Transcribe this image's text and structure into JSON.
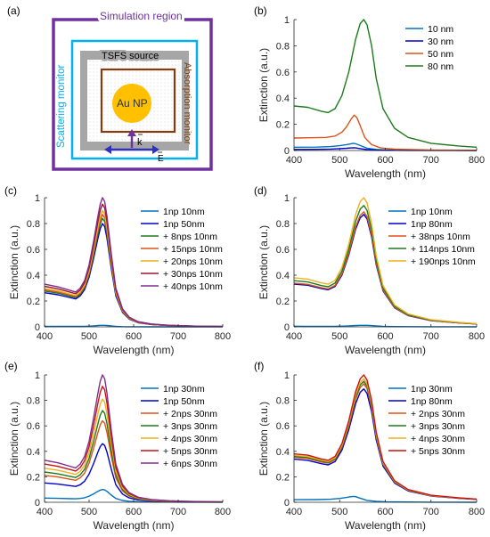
{
  "schematic": {
    "panel_label": "(a)",
    "simulation_region_label": "Simulation region",
    "source_label": "TSFS source",
    "scattering_monitor_label": "Scattering monitor",
    "absorption_monitor_label": "Absorption monitor",
    "particle_label": "Au NP",
    "k_label": "k",
    "e_label": "E",
    "colors": {
      "simulation_region": "#7030a0",
      "scattering_monitor": "#00b0f0",
      "source": "#a6a6a6",
      "absorption_monitor": "#843c0c",
      "particle": "#ffc000",
      "k_arrow": "#7030a0",
      "e_arrow": "#3030c0"
    }
  },
  "chart_data": [
    {
      "panel_label": "(b)",
      "type": "line",
      "xlabel": "Wavelength (nm)",
      "ylabel": "Extinction (a.u.)",
      "xlim": [
        400,
        800
      ],
      "ylim": [
        0,
        1
      ],
      "xticks": [
        400,
        500,
        600,
        700,
        800
      ],
      "yticks": [
        0,
        0.2,
        0.4,
        0.6,
        0.8,
        1
      ],
      "xtick_labels": [
        "400",
        "500",
        "600",
        "700",
        "800"
      ],
      "ytick_labels": [
        "0",
        "0.2",
        "0.4",
        "0.6",
        "0.8",
        "1"
      ],
      "legend_position": "top-right",
      "series": [
        {
          "name": "10 nm",
          "color": "#0072bd",
          "x": [
            400,
            450,
            480,
            500,
            515,
            525,
            530,
            535,
            545,
            560,
            580,
            600,
            650,
            700,
            800
          ],
          "y": [
            0.025,
            0.026,
            0.03,
            0.037,
            0.045,
            0.052,
            0.055,
            0.052,
            0.038,
            0.018,
            0.008,
            0.005,
            0.003,
            0.002,
            0.001
          ]
        },
        {
          "name": "30 nm",
          "color": "#0000cc",
          "x": [
            400,
            450,
            480,
            500,
            515,
            525,
            530,
            535,
            545,
            560,
            580,
            600,
            650,
            700,
            800
          ],
          "y": [
            0.008,
            0.009,
            0.011,
            0.014,
            0.017,
            0.02,
            0.021,
            0.02,
            0.014,
            0.007,
            0.003,
            0.002,
            0.001,
            0.001,
            0.0
          ]
        },
        {
          "name": "50 nm",
          "color": "#d95319",
          "x": [
            400,
            450,
            470,
            490,
            505,
            515,
            525,
            532,
            538,
            545,
            555,
            570,
            590,
            620,
            700,
            800
          ],
          "y": [
            0.095,
            0.098,
            0.1,
            0.11,
            0.14,
            0.18,
            0.24,
            0.27,
            0.25,
            0.19,
            0.1,
            0.045,
            0.02,
            0.01,
            0.004,
            0.002
          ]
        },
        {
          "name": "80 nm",
          "color": "#1e7a1e",
          "x": [
            400,
            430,
            460,
            475,
            490,
            505,
            520,
            535,
            545,
            553,
            560,
            570,
            580,
            595,
            620,
            650,
            700,
            760,
            800
          ],
          "y": [
            0.34,
            0.33,
            0.3,
            0.29,
            0.32,
            0.42,
            0.6,
            0.85,
            0.97,
            1.0,
            0.96,
            0.8,
            0.55,
            0.32,
            0.17,
            0.1,
            0.055,
            0.035,
            0.025
          ]
        }
      ]
    },
    {
      "panel_label": "(c)",
      "type": "line",
      "xlabel": "Wavelength (nm)",
      "ylabel": "Extinction (a.u.)",
      "xlim": [
        400,
        800
      ],
      "ylim": [
        0,
        1
      ],
      "xticks": [
        400,
        500,
        600,
        700,
        800
      ],
      "yticks": [
        0,
        0.2,
        0.4,
        0.6,
        0.8,
        1
      ],
      "xtick_labels": [
        "400",
        "500",
        "600",
        "700",
        "800"
      ],
      "ytick_labels": [
        "0",
        "0.2",
        "0.4",
        "0.6",
        "0.8",
        "1"
      ],
      "legend_position": "top-right",
      "shape_x": [
        400,
        430,
        460,
        470,
        480,
        490,
        500,
        510,
        520,
        525,
        530,
        535,
        540,
        550,
        560,
        575,
        590,
        610,
        640,
        680,
        720,
        760,
        800
      ],
      "shape_rel": [
        0.33,
        0.31,
        0.28,
        0.27,
        0.3,
        0.36,
        0.48,
        0.66,
        0.86,
        0.95,
        1.0,
        0.97,
        0.86,
        0.56,
        0.3,
        0.14,
        0.075,
        0.04,
        0.022,
        0.012,
        0.007,
        0.004,
        0.003
      ],
      "series": [
        {
          "name": "1np 10nm",
          "color": "#0072bd",
          "peak": 0.012
        },
        {
          "name": "1np 50nm",
          "color": "#0000cc",
          "peak": 0.8
        },
        {
          "name": "+ 8nps 10nm",
          "color": "#1e7a1e",
          "peak": 0.84
        },
        {
          "name": "+ 15nps 10nm",
          "color": "#d95319",
          "peak": 0.87
        },
        {
          "name": "+ 20nps 10nm",
          "color": "#edb120",
          "peak": 0.9
        },
        {
          "name": "+ 30nps 10nm",
          "color": "#a2142f",
          "peak": 0.95
        },
        {
          "name": "+ 40nps 10nm",
          "color": "#7e2f8e",
          "peak": 1.0
        }
      ]
    },
    {
      "panel_label": "(d)",
      "type": "line",
      "xlabel": "Wavelength (nm)",
      "ylabel": "Extinction (a.u.)",
      "xlim": [
        400,
        800
      ],
      "ylim": [
        0,
        1
      ],
      "xticks": [
        400,
        500,
        600,
        700,
        800
      ],
      "yticks": [
        0,
        0.2,
        0.4,
        0.6,
        0.8,
        1
      ],
      "xtick_labels": [
        "400",
        "500",
        "600",
        "700",
        "800"
      ],
      "ytick_labels": [
        "0",
        "0.2",
        "0.4",
        "0.6",
        "0.8",
        "1"
      ],
      "legend_position": "top-right",
      "shape_x": [
        400,
        430,
        460,
        475,
        490,
        505,
        520,
        535,
        545,
        553,
        560,
        570,
        580,
        595,
        620,
        650,
        700,
        760,
        800
      ],
      "shape_rel": [
        0.38,
        0.37,
        0.34,
        0.33,
        0.36,
        0.46,
        0.64,
        0.87,
        0.97,
        1.0,
        0.96,
        0.8,
        0.55,
        0.32,
        0.17,
        0.1,
        0.055,
        0.035,
        0.025
      ],
      "series": [
        {
          "name": "1np 10nm",
          "color": "#0072bd",
          "peak": 0.012
        },
        {
          "name": "1np 80nm",
          "color": "#0000cc",
          "peak": 0.87
        },
        {
          "name": "+ 38nps 10nm",
          "color": "#d95319",
          "peak": 0.89
        },
        {
          "name": "+ 114nps 10nm",
          "color": "#1e7a1e",
          "peak": 0.94
        },
        {
          "name": "+ 190nps 10nm",
          "color": "#edb120",
          "peak": 1.0
        }
      ]
    },
    {
      "panel_label": "(e)",
      "type": "line",
      "xlabel": "Wavelength (nm)",
      "ylabel": "Extinction (a.u.)",
      "xlim": [
        400,
        800
      ],
      "ylim": [
        0,
        1
      ],
      "xticks": [
        400,
        500,
        600,
        700,
        800
      ],
      "yticks": [
        0,
        0.2,
        0.4,
        0.6,
        0.8,
        1
      ],
      "xtick_labels": [
        "400",
        "500",
        "600",
        "700",
        "800"
      ],
      "ytick_labels": [
        "0",
        "0.2",
        "0.4",
        "0.6",
        "0.8",
        "1"
      ],
      "legend_position": "top-right",
      "shape_x": [
        400,
        430,
        460,
        470,
        480,
        490,
        500,
        510,
        520,
        525,
        530,
        535,
        540,
        550,
        560,
        575,
        590,
        610,
        640,
        680,
        720,
        760,
        800
      ],
      "shape_rel": [
        0.33,
        0.31,
        0.28,
        0.27,
        0.3,
        0.36,
        0.48,
        0.66,
        0.86,
        0.95,
        1.0,
        0.97,
        0.86,
        0.56,
        0.3,
        0.14,
        0.075,
        0.04,
        0.022,
        0.012,
        0.007,
        0.004,
        0.003
      ],
      "series": [
        {
          "name": "1np 30nm",
          "color": "#0072bd",
          "peak": 0.1
        },
        {
          "name": "1np 50nm",
          "color": "#0000cc",
          "peak": 0.46
        },
        {
          "name": "+ 2nps 30nm",
          "color": "#d95319",
          "peak": 0.64
        },
        {
          "name": "+ 3nps 30nm",
          "color": "#1e7a1e",
          "peak": 0.72
        },
        {
          "name": "+ 4nps 30nm",
          "color": "#edb120",
          "peak": 0.81
        },
        {
          "name": "+ 5nps 30nm",
          "color": "#cc1111",
          "peak": 0.91
        },
        {
          "name": "+ 6nps 30nm",
          "color": "#7e2f8e",
          "peak": 1.0
        }
      ]
    },
    {
      "panel_label": "(f)",
      "type": "line",
      "xlabel": "Wavelength (nm)",
      "ylabel": "Extinction (a.u.)",
      "xlim": [
        400,
        800
      ],
      "ylim": [
        0,
        1
      ],
      "xticks": [
        400,
        500,
        600,
        700,
        800
      ],
      "yticks": [
        0,
        0.2,
        0.4,
        0.6,
        0.8,
        1
      ],
      "xtick_labels": [
        "400",
        "500",
        "600",
        "700",
        "800"
      ],
      "ytick_labels": [
        "0",
        "0.2",
        "0.4",
        "0.6",
        "0.8",
        "1"
      ],
      "legend_position": "top-right",
      "shape_x": [
        400,
        430,
        460,
        475,
        490,
        505,
        520,
        535,
        545,
        553,
        560,
        570,
        580,
        595,
        620,
        650,
        700,
        760,
        800
      ],
      "shape_rel": [
        0.38,
        0.37,
        0.34,
        0.33,
        0.36,
        0.46,
        0.64,
        0.87,
        0.97,
        1.0,
        0.96,
        0.8,
        0.55,
        0.32,
        0.17,
        0.1,
        0.055,
        0.035,
        0.025
      ],
      "series": [
        {
          "name": "1np 30nm",
          "color": "#0072bd",
          "peak": 0.045,
          "x": [
            400,
            450,
            480,
            500,
            515,
            525,
            530,
            535,
            545,
            560,
            580,
            600,
            650,
            700,
            800
          ],
          "y": [
            0.02,
            0.021,
            0.024,
            0.03,
            0.038,
            0.044,
            0.046,
            0.044,
            0.032,
            0.015,
            0.007,
            0.004,
            0.002,
            0.001,
            0.0
          ]
        },
        {
          "name": "1np 80nm",
          "color": "#0000cc",
          "peak": 0.89
        },
        {
          "name": "+ 2nps 30nm",
          "color": "#d95319",
          "peak": 0.93
        },
        {
          "name": "+ 3nps 30nm",
          "color": "#1e7a1e",
          "peak": 0.95
        },
        {
          "name": "+ 4nps 30nm",
          "color": "#edb120",
          "peak": 0.97
        },
        {
          "name": "+ 5nps 30nm",
          "color": "#cc1111",
          "peak": 1.0
        }
      ]
    }
  ]
}
